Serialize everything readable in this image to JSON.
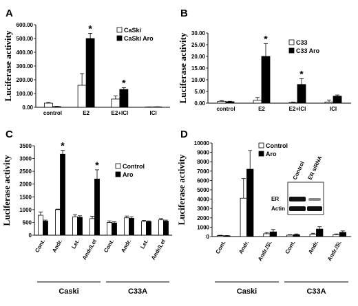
{
  "panels": {
    "A": {
      "letter": "A"
    },
    "B": {
      "letter": "B"
    },
    "C": {
      "letter": "C"
    },
    "D": {
      "letter": "D"
    }
  },
  "western_blot": {
    "lanes": [
      "Control",
      "ER siRNA"
    ],
    "rows": [
      "ER",
      "Actin"
    ]
  },
  "chart_data": [
    {
      "id": "A",
      "type": "bar",
      "ylabel": "Luciferase activity",
      "ylim": [
        0,
        600
      ],
      "yticks": [
        "0.00",
        "100.00",
        "200.00",
        "300.00",
        "400.00",
        "500.00",
        "600.00"
      ],
      "categories": [
        "control",
        "E2",
        "E2+ICI",
        "ICI"
      ],
      "series": [
        {
          "name": "CaSki",
          "color": "#ffffff",
          "values": [
            30,
            160,
            60,
            2
          ],
          "errors": [
            5,
            85,
            22,
            1
          ]
        },
        {
          "name": "CaSki Aro",
          "color": "#000000",
          "values": [
            5,
            500,
            130,
            3
          ],
          "errors": [
            2,
            38,
            12,
            1
          ]
        }
      ],
      "stars": [
        1,
        2
      ],
      "legend": "top-right"
    },
    {
      "id": "B",
      "type": "bar",
      "ylabel": "Luciferase activity",
      "ylim": [
        0,
        30
      ],
      "yticks": [
        "0.00",
        "5.00",
        "10.00",
        "15.00",
        "20.00",
        "25.00",
        "30.00"
      ],
      "categories": [
        "control",
        "E2",
        "E2+ICI",
        "ICI"
      ],
      "series": [
        {
          "name": "C33",
          "color": "#ffffff",
          "values": [
            0.8,
            1.2,
            0.3,
            0.5
          ],
          "errors": [
            0.3,
            1.2,
            0.2,
            0.8
          ]
        },
        {
          "name": "C33 Aro",
          "color": "#000000",
          "values": [
            0.6,
            20,
            8,
            3
          ],
          "errors": [
            0.2,
            5.5,
            2.5,
            0.5
          ]
        }
      ],
      "stars": [
        1,
        2
      ],
      "legend": "top-right"
    },
    {
      "id": "C",
      "type": "bar",
      "ylabel": "Luciferase activity",
      "ylim": [
        0,
        3500
      ],
      "yticks": [
        "0",
        "500",
        "1000",
        "1500",
        "2000",
        "2500",
        "3000",
        "3500"
      ],
      "categories": [
        "Cont.",
        "Andr.",
        "Let.",
        "Andr/Let",
        "Cont.",
        "Andr.",
        "Let.",
        "Andr/Let"
      ],
      "groups": [
        {
          "label": "Caski",
          "from": 0,
          "to": 3
        },
        {
          "label": "C33A",
          "from": 4,
          "to": 7
        }
      ],
      "series": [
        {
          "name": "Control",
          "color": "#ffffff",
          "values": [
            780,
            1000,
            720,
            650,
            500,
            680,
            540,
            600
          ],
          "errors": [
            130,
            20,
            80,
            90,
            60,
            70,
            40,
            50
          ]
        },
        {
          "name": "Aro",
          "color": "#000000",
          "values": [
            550,
            3170,
            700,
            2200,
            480,
            660,
            530,
            550
          ],
          "errors": [
            40,
            150,
            60,
            360,
            50,
            60,
            30,
            40
          ]
        }
      ],
      "stars": [
        1,
        3
      ],
      "legend": "top-right"
    },
    {
      "id": "D",
      "type": "bar",
      "ylabel": "Luciferase activity",
      "ylim": [
        0,
        10000
      ],
      "yticks": [
        "0",
        "1000",
        "2000",
        "3000",
        "4000",
        "5000",
        "6000",
        "7000",
        "8000",
        "9000",
        "10000"
      ],
      "categories": [
        "Cont.",
        "Andr.",
        "Andr./Si.",
        "Cont.",
        "Andr.",
        "Andr./Si."
      ],
      "groups": [
        {
          "label": "Caski",
          "from": 0,
          "to": 2
        },
        {
          "label": "C33A",
          "from": 3,
          "to": 5
        }
      ],
      "series": [
        {
          "name": "Control",
          "color": "#ffffff",
          "values": [
            100,
            4100,
            300,
            150,
            250,
            200
          ],
          "errors": [
            40,
            2100,
            120,
            50,
            100,
            80
          ]
        },
        {
          "name": "Aro",
          "color": "#000000",
          "values": [
            80,
            7200,
            500,
            200,
            800,
            450
          ],
          "errors": [
            30,
            2000,
            250,
            80,
            250,
            150
          ]
        }
      ],
      "legend": "top-left"
    }
  ]
}
